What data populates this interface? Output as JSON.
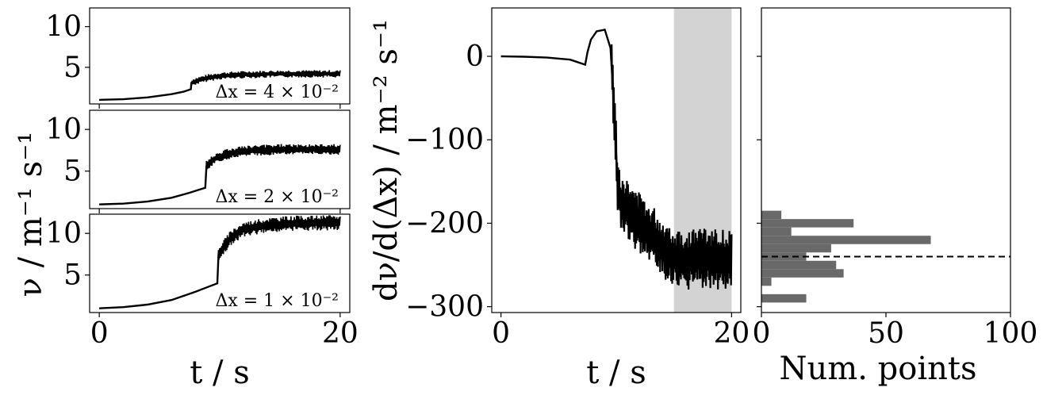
{
  "chart_data": [
    {
      "type": "line",
      "annotation": "Δx = 4 × 10⁻²",
      "xlim": [
        -0.8,
        20.8
      ],
      "ylim": [
        0.5,
        12.3
      ],
      "y_ticks": [
        5,
        10
      ],
      "x_ticks": [],
      "series_points": [
        [
          0,
          1
        ],
        [
          2,
          1.08
        ],
        [
          4,
          1.3
        ],
        [
          6,
          1.7
        ],
        [
          7,
          2.0
        ],
        [
          7.6,
          2.3
        ],
        [
          7.65,
          3.1
        ],
        [
          8,
          3.3
        ],
        [
          9,
          3.7
        ],
        [
          10,
          3.95
        ],
        [
          12,
          4.1
        ],
        [
          15,
          4.2
        ],
        [
          20,
          4.2
        ]
      ],
      "band": 0.35
    },
    {
      "type": "line",
      "annotation": "Δx = 2 × 10⁻²",
      "xlim": [
        -0.8,
        20.8
      ],
      "ylim": [
        0.5,
        12.3
      ],
      "y_ticks": [
        5,
        10
      ],
      "x_ticks": [],
      "series_points": [
        [
          0,
          1
        ],
        [
          2,
          1.1
        ],
        [
          4,
          1.35
        ],
        [
          6,
          1.8
        ],
        [
          7.5,
          2.4
        ],
        [
          8.8,
          3.0
        ],
        [
          8.9,
          5.6
        ],
        [
          9.5,
          6.4
        ],
        [
          10.5,
          7.0
        ],
        [
          12,
          7.4
        ],
        [
          15,
          7.6
        ],
        [
          20,
          7.6
        ]
      ],
      "band": 0.5
    },
    {
      "type": "line",
      "annotation": "Δx = 1 × 10⁻²",
      "xlim": [
        -0.8,
        20.8
      ],
      "ylim": [
        0.5,
        12.3
      ],
      "y_ticks": [
        5,
        10
      ],
      "x_ticks": [
        0,
        20
      ],
      "xlabel": "t / s",
      "series_points": [
        [
          0,
          1
        ],
        [
          2,
          1.15
        ],
        [
          4,
          1.45
        ],
        [
          6,
          2.0
        ],
        [
          8,
          3.0
        ],
        [
          9.8,
          4.0
        ],
        [
          9.9,
          7.5
        ],
        [
          10.3,
          8.3
        ],
        [
          11,
          9.6
        ],
        [
          12,
          10.5
        ],
        [
          14,
          11.0
        ],
        [
          16,
          11.2
        ],
        [
          20,
          11.3
        ]
      ],
      "band": 0.7
    },
    {
      "type": "line",
      "xlim": [
        -0.8,
        20.8
      ],
      "ylim": [
        -307,
        58
      ],
      "x_ticks": [
        0,
        20
      ],
      "y_ticks": [
        0,
        -100,
        -200,
        -300
      ],
      "xlabel": "t / s",
      "ylabel": "dν/d(Δx) / m⁻² s⁻¹",
      "shaded_region": [
        15,
        20
      ],
      "series_points": [
        [
          0,
          0
        ],
        [
          2,
          -0.5
        ],
        [
          4,
          -1.5
        ],
        [
          6,
          -4
        ],
        [
          7.3,
          -10
        ],
        [
          7.5,
          5
        ],
        [
          7.8,
          20
        ],
        [
          8.3,
          30
        ],
        [
          9,
          32
        ],
        [
          9.5,
          10
        ],
        [
          9.8,
          -60
        ],
        [
          10.1,
          -150
        ],
        [
          10.4,
          -175
        ],
        [
          11,
          -185
        ],
        [
          12,
          -200
        ],
        [
          13,
          -212
        ],
        [
          14,
          -230
        ],
        [
          15,
          -240
        ],
        [
          16,
          -245
        ],
        [
          17,
          -240
        ],
        [
          18,
          -242
        ],
        [
          19,
          -245
        ],
        [
          20,
          -240
        ]
      ],
      "band": 28
    },
    {
      "type": "bar",
      "orientation": "horizontal",
      "xlim": [
        0,
        100
      ],
      "x_ticks": [
        0,
        50,
        100
      ],
      "xlabel": "Num. points",
      "bins": [
        {
          "y0": -295,
          "y1": -285,
          "count": 18
        },
        {
          "y0": -285,
          "y1": -275,
          "count": 0
        },
        {
          "y0": -275,
          "y1": -265,
          "count": 4
        },
        {
          "y0": -265,
          "y1": -255,
          "count": 33
        },
        {
          "y0": -255,
          "y1": -245,
          "count": 30
        },
        {
          "y0": -245,
          "y1": -235,
          "count": 18
        },
        {
          "y0": -235,
          "y1": -225,
          "count": 28
        },
        {
          "y0": -225,
          "y1": -215,
          "count": 68
        },
        {
          "y0": -215,
          "y1": -205,
          "count": 12
        },
        {
          "y0": -205,
          "y1": -195,
          "count": 37
        },
        {
          "y0": -195,
          "y1": -185,
          "count": 8
        }
      ],
      "mean_line": -240,
      "colors": {
        "bars": "#696969",
        "shade": "#d3d3d3",
        "line": "#000000"
      }
    }
  ],
  "shared": {
    "ylabel_left": "ν / m⁻¹ s⁻¹"
  }
}
